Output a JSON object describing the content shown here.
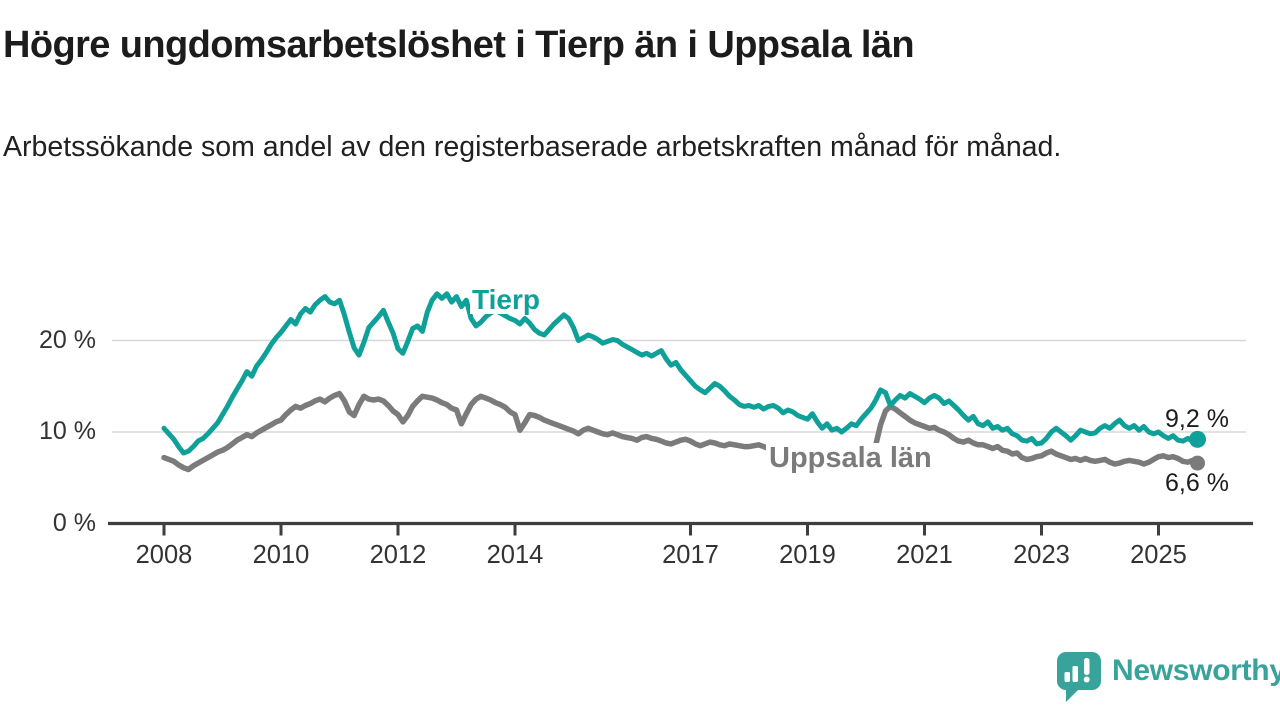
{
  "title": "Högre ungdomsarbetslöshet i Tierp än i Uppsala län",
  "subtitle": "Arbetssökande som andel av den registerbaserade arbetskraften månad för månad.",
  "colors": {
    "tierp": "#10a09a",
    "uppsala": "#7b7b7b",
    "grid": "#d8d8d8",
    "axis": "#3e3e3e",
    "brand_teal": "#38a39b"
  },
  "chart_data": {
    "type": "line",
    "unit": "%",
    "frequency": "monthly",
    "start_month": "2008-01",
    "end_month": "2025-09",
    "grid": "horizontal",
    "legend_position": "inline-labels",
    "ylim": [
      0,
      27
    ],
    "y_ticks": [
      {
        "value": 0,
        "label": "0 %"
      },
      {
        "value": 10,
        "label": "10 %"
      },
      {
        "value": 20,
        "label": "20 %"
      }
    ],
    "x_ticks": [
      {
        "year": 2008,
        "label": "2008"
      },
      {
        "year": 2010,
        "label": "2010"
      },
      {
        "year": 2012,
        "label": "2012"
      },
      {
        "year": 2014,
        "label": "2014"
      },
      {
        "year": 2017,
        "label": "2017"
      },
      {
        "year": 2019,
        "label": "2019"
      },
      {
        "year": 2021,
        "label": "2021"
      },
      {
        "year": 2023,
        "label": "2023"
      },
      {
        "year": 2025,
        "label": "2025"
      }
    ],
    "series": [
      {
        "name": "Tierp",
        "color": "#10a09a",
        "end_label": "9,2 %",
        "last_value": 9.2,
        "values": [
          10.4,
          9.8,
          9.2,
          8.4,
          7.7,
          7.9,
          8.4,
          9.0,
          9.3,
          9.8,
          10.4,
          11.0,
          11.9,
          12.8,
          13.8,
          14.7,
          15.6,
          16.6,
          16.1,
          17.2,
          17.9,
          18.7,
          19.6,
          20.3,
          20.9,
          21.6,
          22.3,
          21.8,
          22.9,
          23.5,
          23.1,
          23.9,
          24.4,
          24.8,
          24.2,
          24.0,
          24.4,
          22.8,
          20.9,
          19.2,
          18.4,
          19.8,
          21.4,
          22.0,
          22.6,
          23.3,
          22.0,
          20.8,
          19.1,
          18.6,
          19.9,
          21.3,
          21.6,
          21.0,
          23.1,
          24.4,
          25.1,
          24.6,
          25.1,
          24.2,
          24.8,
          23.7,
          24.4,
          22.4,
          21.6,
          22.0,
          22.6,
          23.0,
          23.3,
          23.0,
          22.7,
          22.4,
          22.2,
          21.8,
          22.4,
          21.9,
          21.2,
          20.8,
          20.6,
          21.2,
          21.8,
          22.3,
          22.8,
          22.4,
          21.4,
          20.0,
          20.3,
          20.6,
          20.4,
          20.1,
          19.7,
          19.9,
          20.1,
          20.0,
          19.6,
          19.3,
          19.0,
          18.7,
          18.4,
          18.6,
          18.3,
          18.6,
          18.9,
          18.0,
          17.3,
          17.6,
          16.8,
          16.2,
          15.6,
          15.0,
          14.6,
          14.3,
          14.8,
          15.3,
          15.0,
          14.5,
          13.9,
          13.5,
          13.0,
          12.8,
          12.9,
          12.7,
          12.9,
          12.5,
          12.8,
          12.9,
          12.6,
          12.1,
          12.4,
          12.2,
          11.8,
          11.6,
          11.4,
          12.0,
          11.1,
          10.4,
          10.9,
          10.2,
          10.4,
          10.0,
          10.4,
          10.9,
          10.7,
          11.4,
          12.0,
          12.6,
          13.5,
          14.6,
          14.3,
          12.9,
          13.5,
          14.0,
          13.7,
          14.2,
          13.9,
          13.6,
          13.2,
          13.7,
          14.0,
          13.7,
          13.1,
          13.4,
          12.9,
          12.4,
          11.8,
          11.3,
          11.7,
          10.9,
          10.7,
          11.1,
          10.4,
          10.6,
          10.2,
          10.4,
          9.8,
          9.6,
          9.1,
          9.0,
          9.3,
          8.7,
          8.8,
          9.3,
          10.0,
          10.4,
          10.0,
          9.6,
          9.1,
          9.6,
          10.2,
          10.0,
          9.8,
          9.9,
          10.4,
          10.7,
          10.4,
          10.9,
          11.3,
          10.7,
          10.4,
          10.7,
          10.2,
          10.6,
          10.0,
          9.8,
          10.0,
          9.6,
          9.3,
          9.6,
          9.1,
          9.0,
          9.3,
          9.0,
          9.2
        ]
      },
      {
        "name": "Uppsala län",
        "color": "#7b7b7b",
        "end_label": "6,6 %",
        "last_value": 6.6,
        "values": [
          7.2,
          7.0,
          6.8,
          6.4,
          6.1,
          5.9,
          6.3,
          6.6,
          6.9,
          7.2,
          7.5,
          7.8,
          8.0,
          8.3,
          8.7,
          9.1,
          9.4,
          9.7,
          9.5,
          9.9,
          10.2,
          10.5,
          10.8,
          11.1,
          11.3,
          11.9,
          12.4,
          12.8,
          12.6,
          12.9,
          13.1,
          13.4,
          13.6,
          13.3,
          13.7,
          14.0,
          14.2,
          13.4,
          12.2,
          11.8,
          13.0,
          13.9,
          13.6,
          13.5,
          13.6,
          13.4,
          12.9,
          12.3,
          11.9,
          11.1,
          11.8,
          12.8,
          13.4,
          13.9,
          13.8,
          13.7,
          13.5,
          13.2,
          13.0,
          12.6,
          12.4,
          10.9,
          12.0,
          13.0,
          13.6,
          13.9,
          13.7,
          13.5,
          13.2,
          13.0,
          12.7,
          12.2,
          11.9,
          10.2,
          11.0,
          11.9,
          11.8,
          11.6,
          11.3,
          11.1,
          10.9,
          10.7,
          10.5,
          10.3,
          10.1,
          9.8,
          10.2,
          10.4,
          10.2,
          10.0,
          9.8,
          9.7,
          9.9,
          9.7,
          9.5,
          9.4,
          9.3,
          9.1,
          9.4,
          9.5,
          9.3,
          9.2,
          9.0,
          8.8,
          8.7,
          8.9,
          9.1,
          9.2,
          9.0,
          8.7,
          8.5,
          8.7,
          8.9,
          8.8,
          8.6,
          8.5,
          8.7,
          8.6,
          8.5,
          8.4,
          8.4,
          8.5,
          8.6,
          8.4,
          8.2,
          8.1,
          8.0,
          7.9,
          8.1,
          8.0,
          7.8,
          7.7,
          7.6,
          7.7,
          7.5,
          7.4,
          7.5,
          7.4,
          7.3,
          7.2,
          7.4,
          7.5,
          7.6,
          7.8,
          7.8,
          7.9,
          8.6,
          10.8,
          12.3,
          12.8,
          12.5,
          12.1,
          11.7,
          11.3,
          11.0,
          10.8,
          10.6,
          10.4,
          10.5,
          10.2,
          10.0,
          9.7,
          9.3,
          9.0,
          8.9,
          9.1,
          8.8,
          8.6,
          8.6,
          8.4,
          8.2,
          8.4,
          8.0,
          7.9,
          7.6,
          7.7,
          7.2,
          7.0,
          7.1,
          7.3,
          7.4,
          7.7,
          7.9,
          7.6,
          7.4,
          7.2,
          7.0,
          7.1,
          6.9,
          7.1,
          6.9,
          6.8,
          6.9,
          7.0,
          6.7,
          6.5,
          6.6,
          6.8,
          6.9,
          6.8,
          6.7,
          6.5,
          6.7,
          7.0,
          7.3,
          7.4,
          7.2,
          7.3,
          7.1,
          6.8,
          6.7,
          6.9,
          6.6
        ]
      }
    ]
  },
  "footer": {
    "brand": "Newsworthy"
  }
}
